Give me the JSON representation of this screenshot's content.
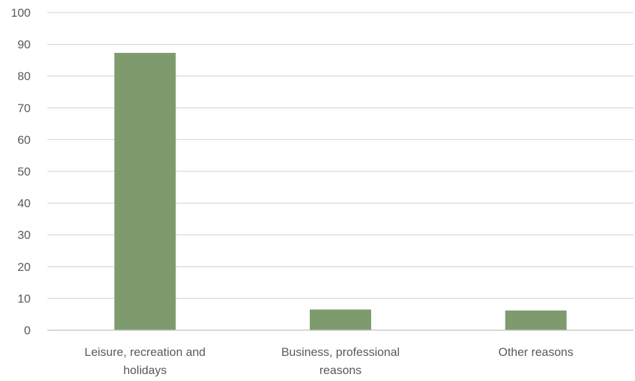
{
  "chart_data": {
    "type": "bar",
    "categories": [
      [
        "Leisure, recreation and",
        "holidays"
      ],
      [
        "Business, professional",
        "reasons"
      ],
      [
        "Other reasons"
      ]
    ],
    "values": [
      87.3,
      6.5,
      6.2
    ],
    "ylim": [
      0,
      100
    ],
    "yticks": [
      "0",
      "10",
      "20",
      "30",
      "40",
      "50",
      "60",
      "70",
      "80",
      "90",
      "100"
    ],
    "grid": true,
    "legend": "none",
    "colors": {
      "bar": "#7e9b6e",
      "grid": "#d9d9d9",
      "axis": "#bfbfbf",
      "text": "#595959"
    }
  }
}
